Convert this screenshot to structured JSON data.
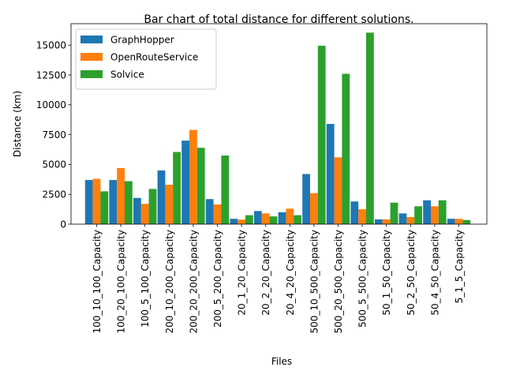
{
  "chart_data": {
    "type": "bar",
    "title": "Bar chart of total distance for different solutions.",
    "xlabel": "Files",
    "ylabel": "Distance (km)",
    "ylim": [
      0,
      16800
    ],
    "yticks": [
      0,
      2500,
      5000,
      7500,
      10000,
      12500,
      15000
    ],
    "grid": false,
    "legend_position": "top-left",
    "categories": [
      "100_10_100_Capacity",
      "100_20_100_Capacity",
      "100_5_100_Capacity",
      "200_10_200_Capacity",
      "200_20_200_Capacity",
      "200_5_200_Capacity",
      "20_1_20_Capacity",
      "20_2_20_Capacity",
      "20_4_20_Capacity",
      "500_10_500_Capacity",
      "500_20_500_Capacity",
      "500_5_500_Capacity",
      "50_1_50_Capacity",
      "50_2_50_Capacity",
      "50_4_50_Capacity",
      "5_1_5_Capacity"
    ],
    "series": [
      {
        "name": "GraphHopper",
        "color": "#1f77b4",
        "values": [
          3700,
          3700,
          2200,
          4500,
          7000,
          2100,
          450,
          1100,
          1000,
          4200,
          8400,
          1900,
          400,
          900,
          2000,
          450
        ]
      },
      {
        "name": "OpenRouteService",
        "color": "#ff7f0e",
        "values": [
          3800,
          4700,
          1700,
          3300,
          7900,
          1650,
          380,
          900,
          1300,
          2600,
          5600,
          1250,
          400,
          600,
          1500,
          450
        ]
      },
      {
        "name": "Solvice",
        "color": "#2ca02c",
        "values": [
          2750,
          3600,
          2950,
          6050,
          6400,
          5750,
          750,
          650,
          750,
          14950,
          12600,
          16050,
          1800,
          1500,
          2000,
          350
        ]
      }
    ]
  }
}
